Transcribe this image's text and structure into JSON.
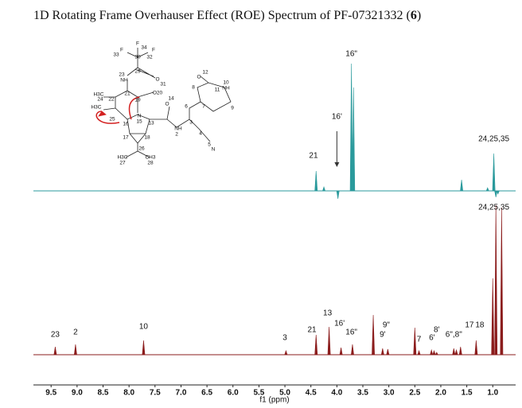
{
  "chart_data": {
    "type": "spectrum",
    "title_parts": [
      "1D Rotating Frame Overhauser Effect (ROE) Spectrum of PF-07321332 (",
      "6",
      ")"
    ],
    "xlabel": "f1 (ppm)",
    "xlim": [
      9.84,
      0.56
    ],
    "xticks": [
      9.5,
      {
        "value": 9,
        "label": "9.0"
      },
      8.5,
      {
        "value": 8,
        "label": "8.0"
      },
      7.5,
      {
        "value": 7,
        "label": "7.0"
      },
      6.5,
      {
        "value": 6,
        "label": "6.0"
      },
      5.5,
      {
        "value": 5,
        "label": "5.0"
      },
      4.5,
      {
        "value": 4,
        "label": "4.0"
      },
      3.5,
      {
        "value": 3,
        "label": "3.0"
      },
      2.5,
      {
        "value": 2,
        "label": "2.0"
      },
      1.5,
      {
        "value": 1,
        "label": "1.0"
      }
    ],
    "series": [
      {
        "color": "#2a9a9c",
        "ylim": [
          -15,
          162
        ],
        "x": [
          4.4,
          4.25,
          3.98,
          3.72,
          3.68,
          1.6,
          1.1,
          0.98,
          0.94,
          0.9
        ],
        "values": [
          25,
          5,
          -10,
          160,
          130,
          14,
          4,
          47,
          -8,
          -4
        ],
        "annotations": [
          {
            "text": "16\"",
            "x": 3.72,
            "y": 172
          },
          {
            "text": "16'",
            "x": 4.0,
            "y": 93,
            "arrow": [
              75,
              30
            ]
          },
          {
            "text": "21",
            "x": 4.45,
            "y": 44
          },
          {
            "text": "24,25,35",
            "x": 0.98,
            "y": 65
          }
        ]
      },
      {
        "color": "#8b1c1c",
        "ylim": [
          -6,
          190
        ],
        "x": [
          9.42,
          9.03,
          7.72,
          4.98,
          4.4,
          4.15,
          3.92,
          3.7,
          3.3,
          3.12,
          3.02,
          2.5,
          2.42,
          2.18,
          2.13,
          2.08,
          1.75,
          1.7,
          1.62,
          1.32,
          1.0,
          0.94,
          0.83
        ],
        "values": [
          10,
          13,
          18,
          5,
          25,
          35,
          9,
          13,
          50,
          8,
          7,
          34,
          5,
          6,
          5,
          3,
          8,
          6,
          10,
          18,
          96,
          188,
          185
        ],
        "annotations": [
          {
            "text": "23",
            "x": 9.42,
            "y": 25
          },
          {
            "text": "2",
            "x": 9.03,
            "y": 28
          },
          {
            "text": "10",
            "x": 7.72,
            "y": 35
          },
          {
            "text": "3",
            "x": 5.0,
            "y": 21
          },
          {
            "text": "21",
            "x": 4.48,
            "y": 31
          },
          {
            "text": "13",
            "x": 4.18,
            "y": 52
          },
          {
            "text": "16'",
            "x": 3.95,
            "y": 39
          },
          {
            "text": "16\"",
            "x": 3.72,
            "y": 28
          },
          {
            "text": "9\"",
            "x": 3.05,
            "y": 37
          },
          {
            "text": "9'",
            "x": 3.12,
            "y": 25
          },
          {
            "text": "7",
            "x": 2.42,
            "y": 19
          },
          {
            "text": "8'",
            "x": 2.08,
            "y": 31
          },
          {
            "text": "6'",
            "x": 2.17,
            "y": 21
          },
          {
            "text": "6\",8\"",
            "x": 1.75,
            "y": 25
          },
          {
            "text": "17",
            "x": 1.45,
            "y": 37
          },
          {
            "text": "18",
            "x": 1.25,
            "y": 37
          },
          {
            "text": "24,25,35",
            "x": 0.98,
            "y": 185
          }
        ]
      }
    ]
  },
  "structure": {
    "labels": [
      "F",
      "34",
      "F",
      "33",
      "30",
      "F",
      "32",
      "29",
      "O",
      "31",
      "23",
      "NH",
      "21",
      "19",
      "O20",
      "H3C",
      "24",
      "22",
      "H3C",
      "25",
      "16",
      "N",
      "15",
      "13",
      "O",
      "14",
      "NH",
      "2",
      "3",
      "4",
      "N",
      "5",
      "6",
      "7",
      "8",
      "O",
      "12",
      "11",
      "10",
      "NH",
      "9",
      "17",
      "18",
      "26",
      "H3C",
      "27",
      "CH3",
      "28"
    ]
  }
}
